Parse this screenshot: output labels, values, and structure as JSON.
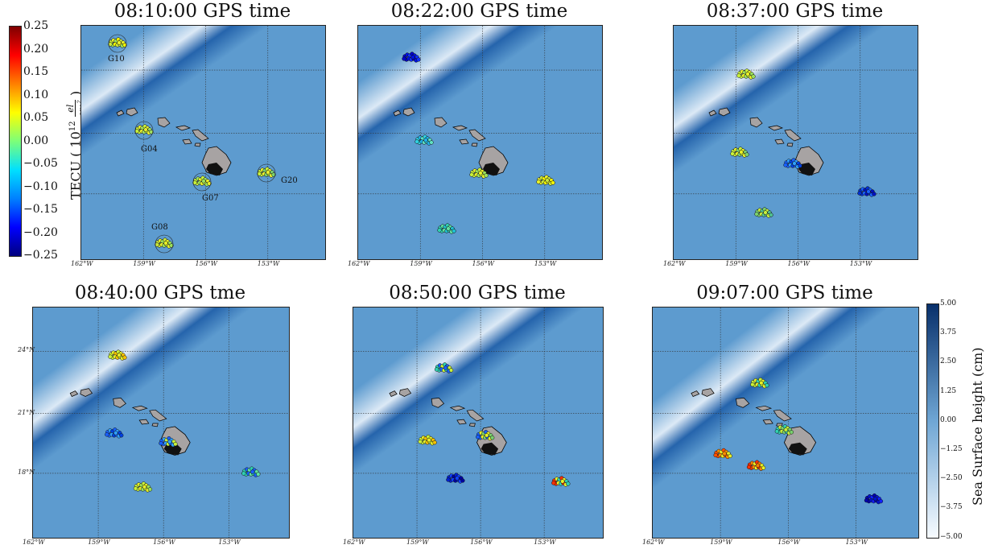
{
  "panels": [
    {
      "title": "08:10:00 GPS time",
      "wave_offset": 0
    },
    {
      "title": "08:22:00 GPS time",
      "wave_offset": 1
    },
    {
      "title": "08:37:00 GPS time",
      "wave_offset": 2
    },
    {
      "title": "08:40:00 GPS tme",
      "wave_offset": 3
    },
    {
      "title": "08:50:00 GPS time",
      "wave_offset": 4
    },
    {
      "title": "09:07:00 GPS time",
      "wave_offset": 5
    }
  ],
  "lon_ticks": [
    "162°W",
    "159°W",
    "156°W",
    "153°W"
  ],
  "lat_ticks": [
    "24°N",
    "21°N",
    "18°N"
  ],
  "station_labels": [
    "G10",
    "G04",
    "G07",
    "G20",
    "G08"
  ],
  "tec_colorbar": {
    "label": "TECU ( 10",
    "label_exp": "12",
    "label_unit_num": "el",
    "label_unit_den": "cm",
    "label_unit_den_exp": "2",
    "label_close": " )",
    "ticks": [
      "0.25",
      "0.20",
      "0.15",
      "0.10",
      "0.05",
      "0.00",
      "−0.05",
      "−0.10",
      "−0.15",
      "−0.20",
      "−0.25"
    ],
    "colors": [
      "#00007f",
      "#0000ff",
      "#0080ff",
      "#00e0ff",
      "#7cff79",
      "#ffff00",
      "#ff8000",
      "#ff0000",
      "#7f0000"
    ]
  },
  "ssh_colorbar": {
    "label": "Sea Surface height (cm)",
    "ticks": [
      "5.00",
      "3.75",
      "2.50",
      "1.25",
      "0.00",
      "−1.25",
      "−2.50",
      "−3.75",
      "−5.00"
    ],
    "colors": [
      "#f7fbff",
      "#6fa6d4",
      "#08306b"
    ]
  },
  "colors": {
    "ocean": "#5d9bcf",
    "wave_dark": "#1f5ea8",
    "wave_light": "#eaf2fa",
    "island": "#a7a3a3",
    "island_dark": "#111111",
    "grid": "#333333"
  }
}
